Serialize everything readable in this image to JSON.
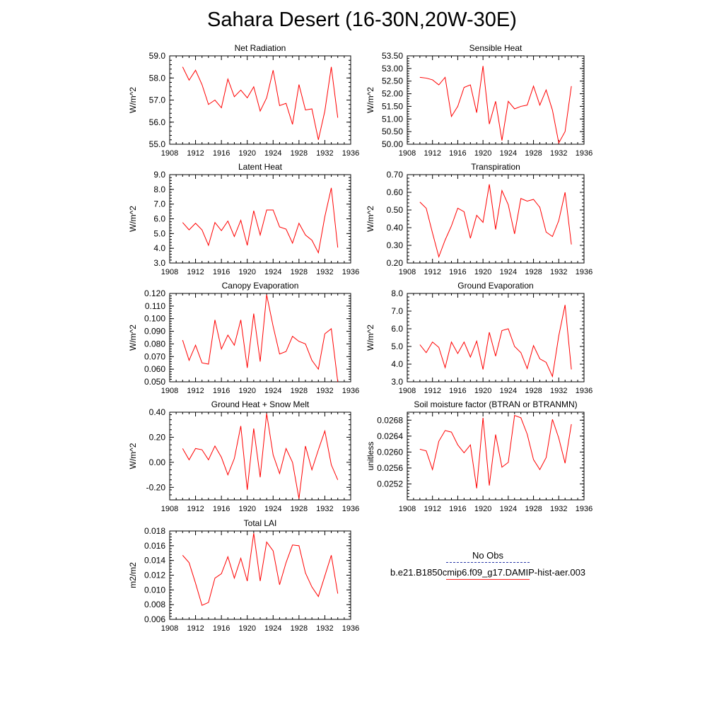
{
  "title": "Sahara Desert (16-30N,20W-30E)",
  "legend": {
    "obs_label": "No Obs",
    "model_label": "b.e21.B1850cmip6.f09_g17.DAMIP-hist-aer.003",
    "obs_color": "#2b3aa8",
    "model_color": "#ff0000"
  },
  "chart_data": [
    {
      "type": "line",
      "title": "Net Radiation",
      "ylabel": "W/m^2",
      "xlim": [
        1908,
        1936
      ],
      "ylim": [
        55.0,
        59.0
      ],
      "xticks": [
        "1908",
        "1912",
        "1916",
        "1920",
        "1924",
        "1928",
        "1932",
        "1936"
      ],
      "yticks": [
        "55.0",
        "56.0",
        "57.0",
        "58.0",
        "59.0"
      ],
      "x": [
        1910,
        1911,
        1912,
        1913,
        1914,
        1915,
        1916,
        1917,
        1918,
        1919,
        1920,
        1921,
        1922,
        1923,
        1924,
        1925,
        1926,
        1927,
        1928,
        1929,
        1930,
        1931,
        1932,
        1933,
        1934
      ],
      "series": [
        {
          "values": [
            58.5,
            57.9,
            58.35,
            57.7,
            56.8,
            57.0,
            56.65,
            57.95,
            57.15,
            57.45,
            57.1,
            57.6,
            56.5,
            57.1,
            58.35,
            56.75,
            56.85,
            55.9,
            57.7,
            56.55,
            56.6,
            55.2,
            56.5,
            58.5,
            56.2
          ]
        }
      ]
    },
    {
      "type": "line",
      "title": "Sensible Heat",
      "ylabel": "W/m^2",
      "xlim": [
        1908,
        1936
      ],
      "ylim": [
        50.0,
        53.5
      ],
      "xticks": [
        "1908",
        "1912",
        "1916",
        "1920",
        "1924",
        "1928",
        "1932",
        "1936"
      ],
      "yticks": [
        "50.00",
        "50.50",
        "51.00",
        "51.50",
        "52.00",
        "52.50",
        "53.00",
        "53.50"
      ],
      "x": [
        1910,
        1911,
        1912,
        1913,
        1914,
        1915,
        1916,
        1917,
        1918,
        1919,
        1920,
        1921,
        1922,
        1923,
        1924,
        1925,
        1926,
        1927,
        1928,
        1929,
        1930,
        1931,
        1932,
        1933,
        1934
      ],
      "series": [
        {
          "values": [
            52.65,
            52.62,
            52.55,
            52.35,
            52.65,
            51.1,
            51.5,
            52.25,
            52.35,
            51.25,
            53.1,
            50.8,
            51.7,
            50.15,
            51.7,
            51.4,
            51.5,
            51.55,
            52.3,
            51.55,
            52.15,
            51.35,
            50.05,
            50.5,
            52.3
          ]
        }
      ]
    },
    {
      "type": "line",
      "title": "Latent Heat",
      "ylabel": "W/m^2",
      "xlim": [
        1908,
        1936
      ],
      "ylim": [
        3.0,
        9.0
      ],
      "xticks": [
        "1908",
        "1912",
        "1916",
        "1920",
        "1924",
        "1928",
        "1932",
        "1936"
      ],
      "yticks": [
        "3.0",
        "4.0",
        "5.0",
        "6.0",
        "7.0",
        "8.0",
        "9.0"
      ],
      "x": [
        1910,
        1911,
        1912,
        1913,
        1914,
        1915,
        1916,
        1917,
        1918,
        1919,
        1920,
        1921,
        1922,
        1923,
        1924,
        1925,
        1926,
        1927,
        1928,
        1929,
        1930,
        1931,
        1932,
        1933,
        1934
      ],
      "series": [
        {
          "values": [
            5.75,
            5.25,
            5.7,
            5.25,
            4.2,
            5.75,
            5.2,
            5.85,
            4.8,
            5.9,
            4.2,
            6.55,
            4.9,
            6.6,
            6.6,
            5.45,
            5.3,
            4.35,
            5.7,
            4.9,
            4.55,
            3.7,
            6.15,
            8.1,
            4.05
          ]
        }
      ]
    },
    {
      "type": "line",
      "title": "Transpiration",
      "ylabel": "W/m^2",
      "xlim": [
        1908,
        1936
      ],
      "ylim": [
        0.2,
        0.7
      ],
      "xticks": [
        "1908",
        "1912",
        "1916",
        "1920",
        "1924",
        "1928",
        "1932",
        "1936"
      ],
      "yticks": [
        "0.20",
        "0.30",
        "0.40",
        "0.50",
        "0.60",
        "0.70"
      ],
      "x": [
        1910,
        1911,
        1912,
        1913,
        1914,
        1915,
        1916,
        1917,
        1918,
        1919,
        1920,
        1921,
        1922,
        1923,
        1924,
        1925,
        1926,
        1927,
        1928,
        1929,
        1930,
        1931,
        1932,
        1933,
        1934
      ],
      "series": [
        {
          "values": [
            0.545,
            0.51,
            0.37,
            0.235,
            0.33,
            0.41,
            0.51,
            0.49,
            0.34,
            0.47,
            0.43,
            0.645,
            0.39,
            0.61,
            0.53,
            0.365,
            0.565,
            0.55,
            0.56,
            0.515,
            0.375,
            0.35,
            0.44,
            0.6,
            0.305
          ]
        }
      ]
    },
    {
      "type": "line",
      "title": "Canopy Evaporation",
      "ylabel": "W/m^2",
      "xlim": [
        1908,
        1936
      ],
      "ylim": [
        0.05,
        0.12
      ],
      "xticks": [
        "1908",
        "1912",
        "1916",
        "1920",
        "1924",
        "1928",
        "1932",
        "1936"
      ],
      "yticks": [
        "0.050",
        "0.060",
        "0.070",
        "0.080",
        "0.090",
        "0.100",
        "0.110",
        "0.120"
      ],
      "x": [
        1910,
        1911,
        1912,
        1913,
        1914,
        1915,
        1916,
        1917,
        1918,
        1919,
        1920,
        1921,
        1922,
        1923,
        1924,
        1925,
        1926,
        1927,
        1928,
        1929,
        1930,
        1931,
        1932,
        1933,
        1934
      ],
      "series": [
        {
          "values": [
            0.083,
            0.067,
            0.079,
            0.065,
            0.064,
            0.099,
            0.076,
            0.087,
            0.079,
            0.099,
            0.061,
            0.104,
            0.066,
            0.119,
            0.094,
            0.072,
            0.074,
            0.086,
            0.082,
            0.08,
            0.067,
            0.06,
            0.088,
            0.092,
            0.05
          ]
        }
      ]
    },
    {
      "type": "line",
      "title": "Ground Evaporation",
      "ylabel": "W/m^2",
      "xlim": [
        1908,
        1936
      ],
      "ylim": [
        3.0,
        8.0
      ],
      "xticks": [
        "1908",
        "1912",
        "1916",
        "1920",
        "1924",
        "1928",
        "1932",
        "1936"
      ],
      "yticks": [
        "3.0",
        "4.0",
        "5.0",
        "6.0",
        "7.0",
        "8.0"
      ],
      "x": [
        1910,
        1911,
        1912,
        1913,
        1914,
        1915,
        1916,
        1917,
        1918,
        1919,
        1920,
        1921,
        1922,
        1923,
        1924,
        1925,
        1926,
        1927,
        1928,
        1929,
        1930,
        1931,
        1932,
        1933,
        1934
      ],
      "series": [
        {
          "values": [
            5.1,
            4.65,
            5.25,
            4.95,
            3.8,
            5.25,
            4.6,
            5.25,
            4.4,
            5.3,
            3.7,
            5.8,
            4.45,
            5.9,
            6.0,
            5.0,
            4.65,
            3.75,
            5.05,
            4.3,
            4.1,
            3.3,
            5.6,
            7.35,
            3.7
          ]
        }
      ]
    },
    {
      "type": "line",
      "title": "Ground Heat + Snow Melt",
      "ylabel": "W/m^2",
      "xlim": [
        1908,
        1936
      ],
      "ylim": [
        -0.3,
        0.4
      ],
      "xticks": [
        "1908",
        "1912",
        "1916",
        "1920",
        "1924",
        "1928",
        "1932",
        "1936"
      ],
      "yticks": [
        "-0.20",
        "0.00",
        "0.20",
        "0.40"
      ],
      "ytick_values": [
        -0.2,
        0.0,
        0.2,
        0.4
      ],
      "x": [
        1910,
        1911,
        1912,
        1913,
        1914,
        1915,
        1916,
        1917,
        1918,
        1919,
        1920,
        1921,
        1922,
        1923,
        1924,
        1925,
        1926,
        1927,
        1928,
        1929,
        1930,
        1931,
        1932,
        1933,
        1934
      ],
      "series": [
        {
          "values": [
            0.11,
            0.02,
            0.11,
            0.1,
            0.02,
            0.13,
            0.04,
            -0.1,
            0.03,
            0.29,
            -0.22,
            0.27,
            -0.12,
            0.39,
            0.06,
            -0.09,
            0.11,
            0.0,
            -0.29,
            0.13,
            -0.06,
            0.1,
            0.25,
            -0.02,
            -0.14
          ]
        }
      ]
    },
    {
      "type": "line",
      "title": "Soil moisture factor (BTRAN or BTRANMN)",
      "ylabel": "unitless",
      "xlim": [
        1908,
        1936
      ],
      "ylim": [
        0.0248,
        0.027
      ],
      "xticks": [
        "1908",
        "1912",
        "1916",
        "1920",
        "1924",
        "1928",
        "1932",
        "1936"
      ],
      "yticks": [
        "0.0252",
        "0.0256",
        "0.0260",
        "0.0264",
        "0.0268"
      ],
      "ytick_values": [
        0.0252,
        0.0256,
        0.026,
        0.0264,
        0.0268
      ],
      "x": [
        1910,
        1911,
        1912,
        1913,
        1914,
        1915,
        1916,
        1917,
        1918,
        1919,
        1920,
        1921,
        1922,
        1923,
        1924,
        1925,
        1926,
        1927,
        1928,
        1929,
        1930,
        1931,
        1932,
        1933,
        1934
      ],
      "series": [
        {
          "values": [
            0.02607,
            0.02603,
            0.02556,
            0.02627,
            0.02654,
            0.0265,
            0.02618,
            0.02598,
            0.02618,
            0.02509,
            0.02686,
            0.02516,
            0.02644,
            0.02562,
            0.02574,
            0.02692,
            0.02686,
            0.02645,
            0.02581,
            0.02556,
            0.02586,
            0.02682,
            0.02635,
            0.02572,
            0.0267
          ]
        }
      ]
    },
    {
      "type": "line",
      "title": "Total LAI",
      "ylabel": "m2/m2",
      "xlim": [
        1908,
        1936
      ],
      "ylim": [
        0.006,
        0.018
      ],
      "xticks": [
        "1908",
        "1912",
        "1916",
        "1920",
        "1924",
        "1928",
        "1932",
        "1936"
      ],
      "yticks": [
        "0.006",
        "0.008",
        "0.010",
        "0.012",
        "0.014",
        "0.016",
        "0.018"
      ],
      "x": [
        1910,
        1911,
        1912,
        1913,
        1914,
        1915,
        1916,
        1917,
        1918,
        1919,
        1920,
        1921,
        1922,
        1923,
        1924,
        1925,
        1926,
        1927,
        1928,
        1929,
        1930,
        1931,
        1932,
        1933,
        1934
      ],
      "series": [
        {
          "values": [
            0.0147,
            0.0137,
            0.0109,
            0.0079,
            0.0083,
            0.0116,
            0.0122,
            0.0145,
            0.0116,
            0.0143,
            0.0112,
            0.0177,
            0.0112,
            0.0165,
            0.0153,
            0.0107,
            0.0137,
            0.0161,
            0.016,
            0.0123,
            0.0104,
            0.0091,
            0.0119,
            0.0147,
            0.0095
          ]
        }
      ]
    }
  ]
}
